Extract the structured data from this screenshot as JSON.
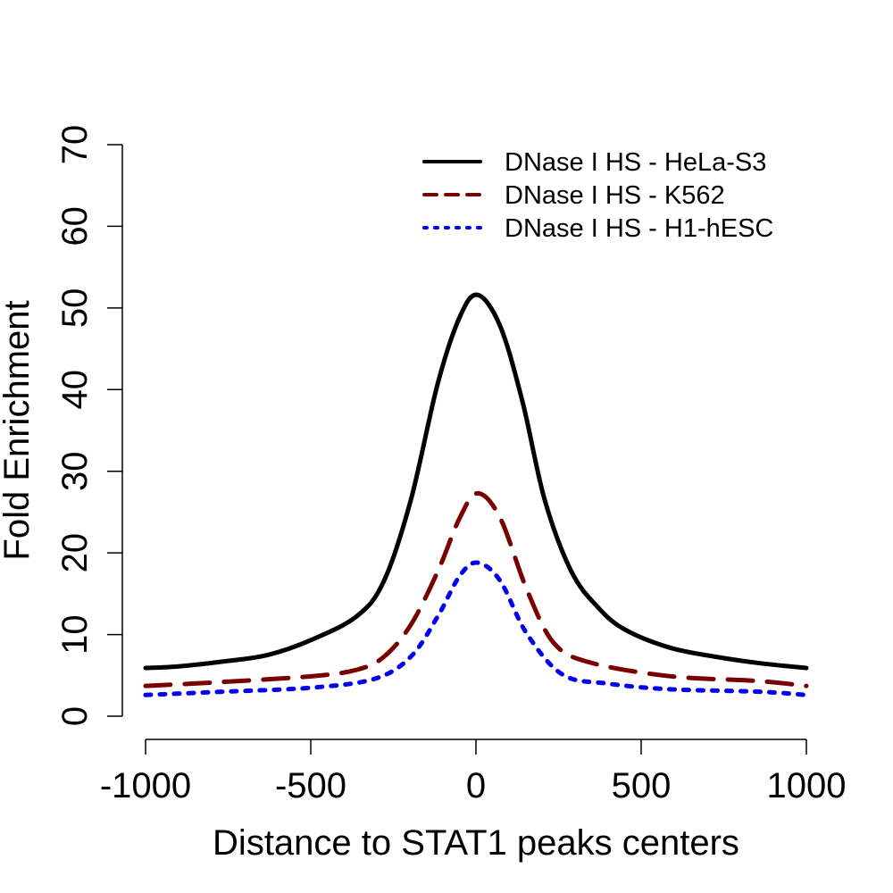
{
  "chart_data": {
    "type": "line",
    "title": "",
    "xlabel": "Distance to STAT1 peaks centers",
    "ylabel": "Fold Enrichment",
    "xlim": [
      -1000,
      1000
    ],
    "ylim": [
      0,
      70
    ],
    "xticks": [
      -1000,
      -500,
      0,
      500,
      1000
    ],
    "xtick_labels": [
      "-1000",
      "-500",
      "0",
      "500",
      "1000"
    ],
    "yticks": [
      0,
      10,
      20,
      30,
      40,
      50,
      60,
      70
    ],
    "ytick_labels": [
      "0",
      "10",
      "20",
      "30",
      "40",
      "50",
      "60",
      "70"
    ],
    "grid": false,
    "legend_position": "top-right",
    "series": [
      {
        "name": "DNase I HS - HeLa-S3",
        "color": "#000000",
        "style": "solid",
        "x": [
          -1000,
          -900,
          -765,
          -630,
          -495,
          -359,
          -278,
          -197,
          -116,
          -49,
          5,
          73,
          141,
          208,
          289,
          370,
          451,
          586,
          722,
          857,
          1000
        ],
        "y": [
          5.9,
          6.1,
          6.7,
          7.5,
          9.4,
          12.3,
          16.6,
          26.5,
          40.7,
          48.9,
          51.6,
          47.8,
          38.5,
          26.5,
          17.7,
          13.3,
          10.6,
          8.4,
          7.3,
          6.5,
          5.9
        ]
      },
      {
        "name": "DNase I HS - K562",
        "color": "#7a0000",
        "style": "dashed",
        "x": [
          -1000,
          -765,
          -495,
          -359,
          -278,
          -197,
          -116,
          -49,
          5,
          73,
          154,
          235,
          343,
          586,
          857,
          1000
        ],
        "y": [
          3.7,
          4.2,
          4.9,
          5.7,
          7.3,
          11.2,
          17.7,
          24.3,
          27.3,
          24.3,
          15.5,
          9.0,
          6.6,
          4.9,
          4.3,
          3.7
        ]
      },
      {
        "name": "DNase I HS - H1-hESC",
        "color": "#0000ee",
        "style": "dotted",
        "x": [
          -1000,
          -765,
          -495,
          -305,
          -197,
          -116,
          -49,
          5,
          73,
          154,
          262,
          397,
          586,
          857,
          1000
        ],
        "y": [
          2.6,
          3.0,
          3.5,
          4.6,
          7.3,
          12.2,
          17.2,
          18.8,
          16.6,
          10.1,
          5.1,
          4.0,
          3.3,
          3.0,
          2.6
        ]
      }
    ]
  }
}
